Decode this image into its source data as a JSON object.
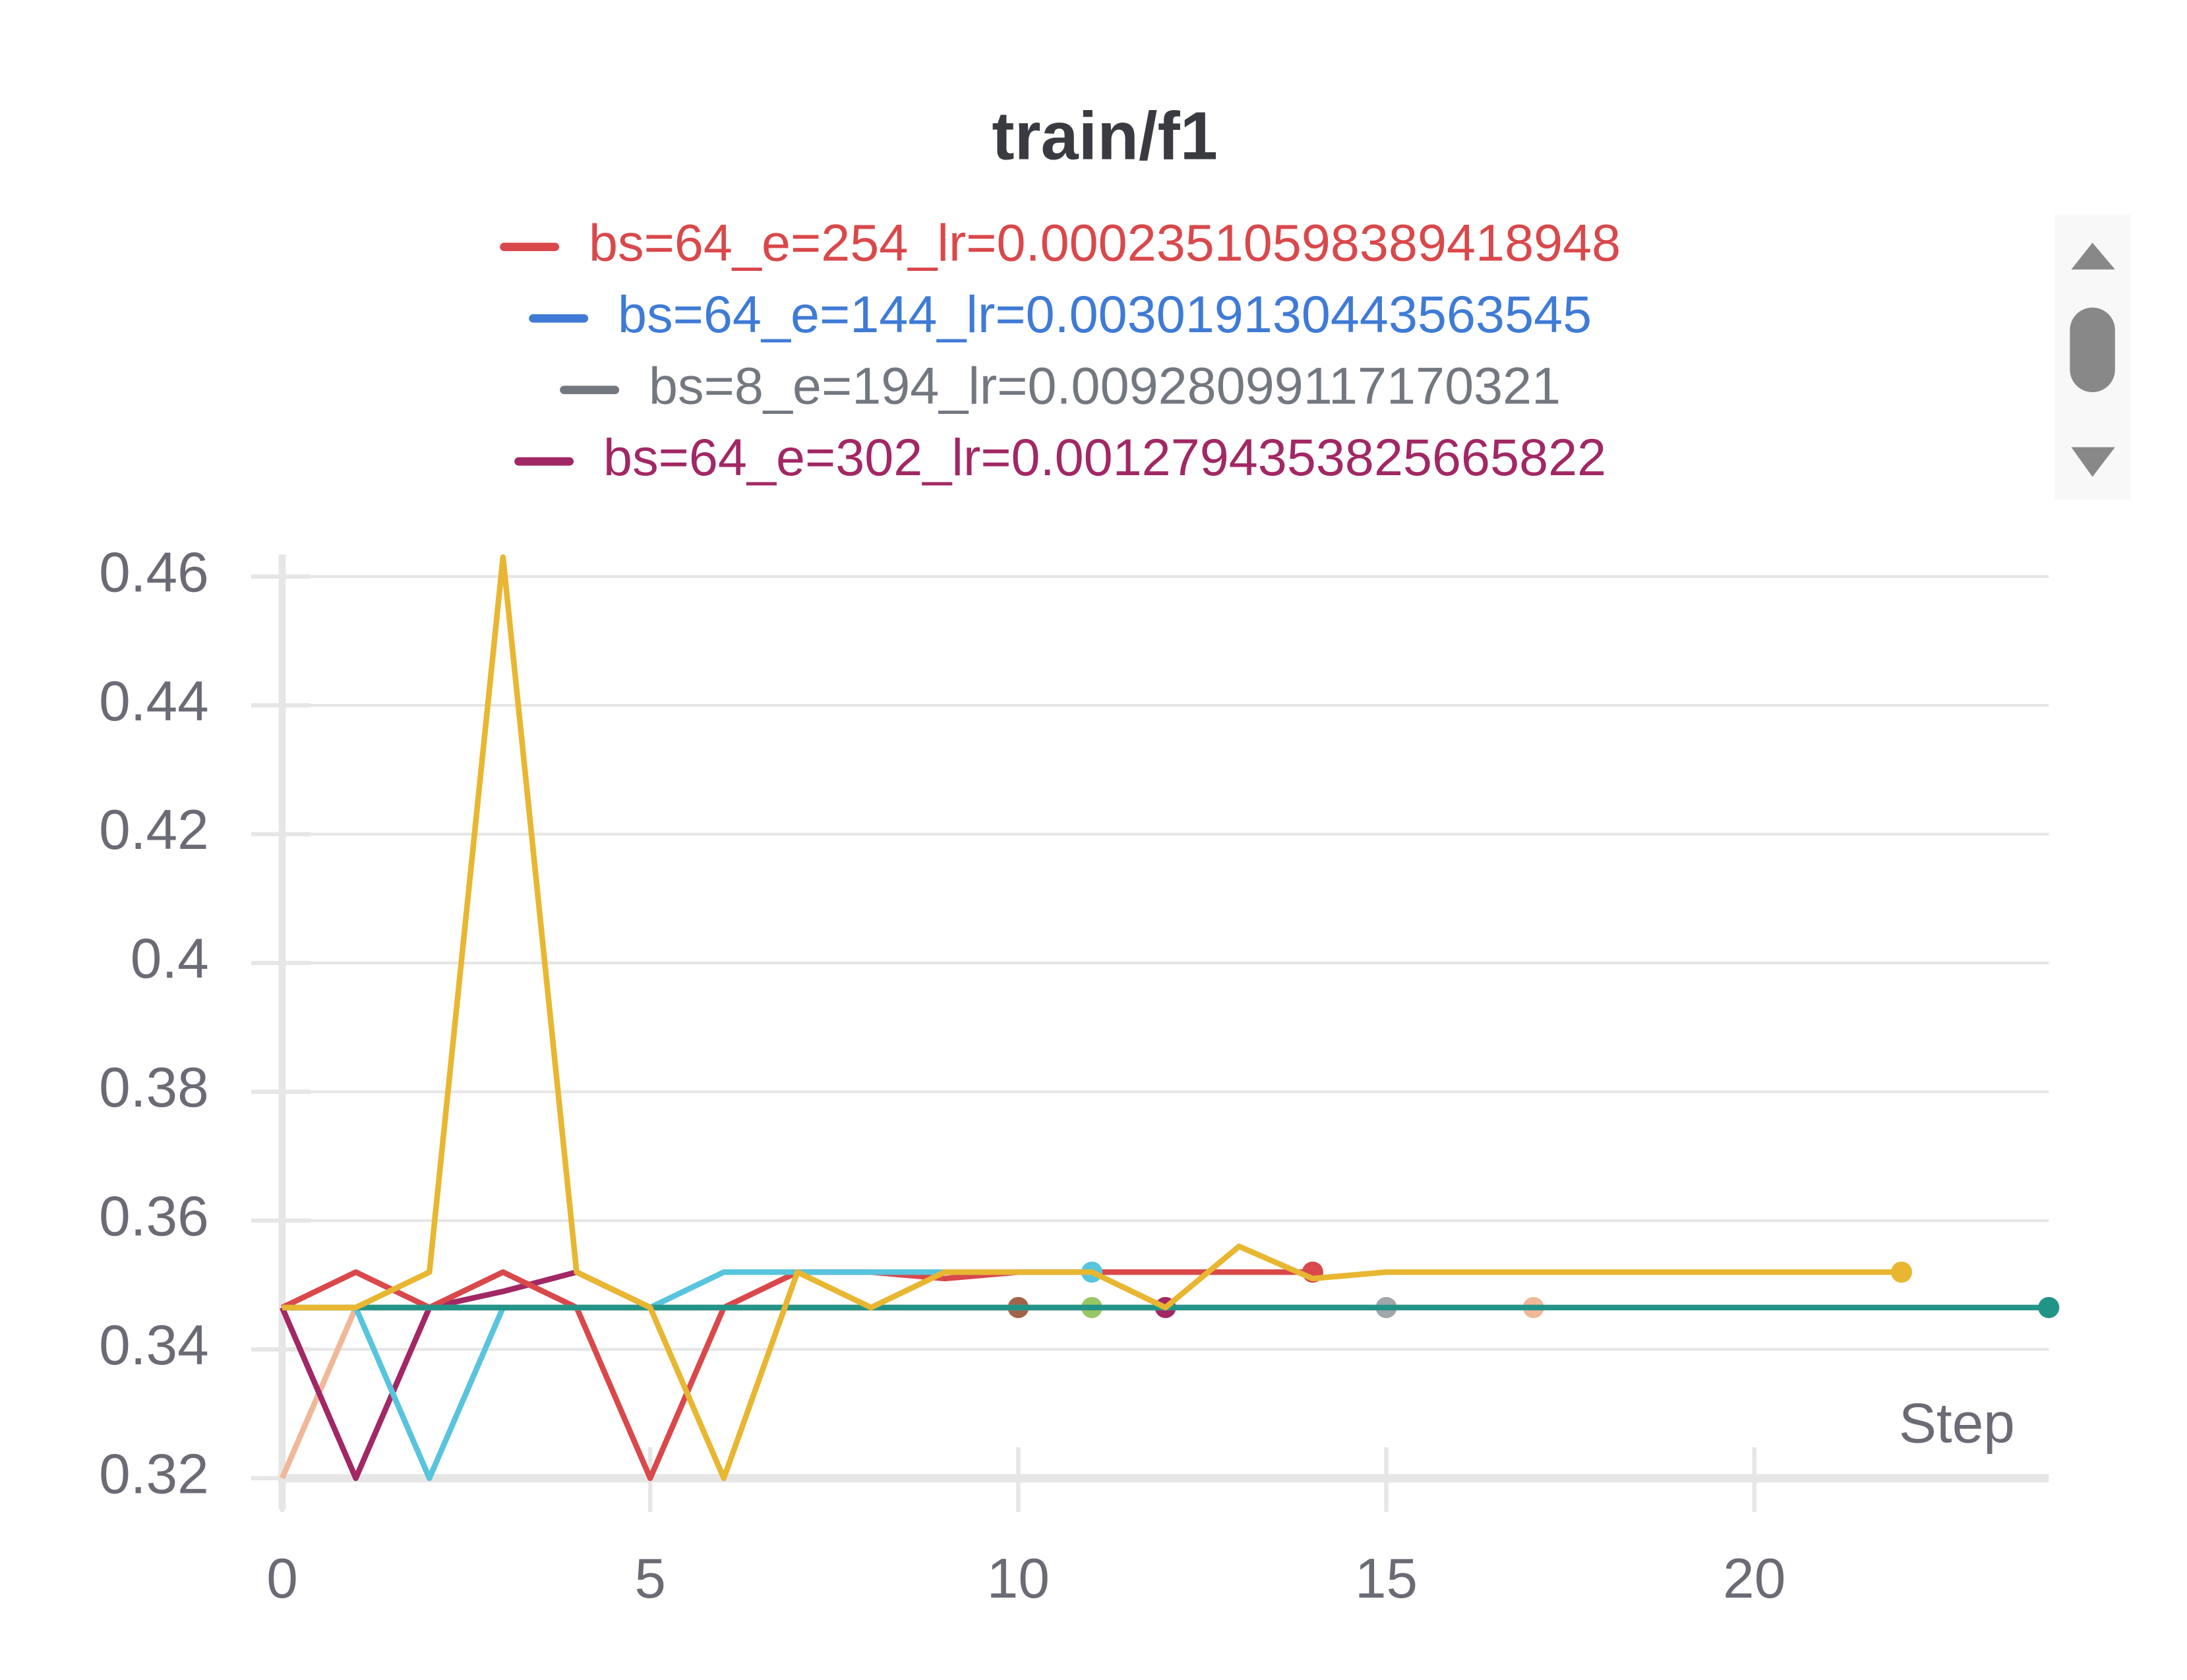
{
  "chart_data": {
    "type": "line",
    "title": "train/f1",
    "legend": [
      {
        "name": "bs=64_e=254_lr=0.00023510598389418948",
        "color": "#d9484b"
      },
      {
        "name": "bs=64_e=144_lr=0.003019130443563545",
        "color": "#3f7bd6"
      },
      {
        "name": "bs=8_e=194_lr=0.00928099117170321",
        "color": "#737880"
      },
      {
        "name": "bs=64_e=302_lr=0.0012794353825665822",
        "color": "#a12864"
      }
    ],
    "x": [
      0,
      1,
      2,
      3,
      4,
      5,
      6,
      7,
      8,
      9,
      10,
      11,
      12,
      13,
      14,
      15,
      16,
      17,
      18,
      19,
      20,
      21,
      22,
      23,
      24
    ],
    "series": [
      {
        "color": "#f0b899",
        "values": [
          0.32,
          0.3465,
          0.3465,
          0.3465,
          0.3465,
          0.3465,
          0.3465,
          0.3465,
          0.3465,
          0.3465,
          0.3465,
          0.3465,
          0.3465,
          0.3465,
          0.3465,
          0.3465,
          0.3465,
          0.3465,
          null,
          null,
          null,
          null,
          null,
          null,
          null
        ]
      },
      {
        "color": "#a12864",
        "values": [
          0.3465,
          0.32,
          0.3465,
          0.349,
          0.352,
          0.3465,
          0.3465,
          0.3465,
          0.3465,
          0.3465,
          0.3465,
          0.3465,
          0.3465,
          null,
          null,
          null,
          null,
          null,
          null,
          null,
          null,
          null,
          null,
          null,
          null
        ]
      },
      {
        "color": "#d9484b",
        "values": [
          0.3465,
          0.352,
          0.3465,
          0.352,
          0.3465,
          0.32,
          0.3465,
          0.352,
          0.352,
          0.351,
          0.352,
          0.352,
          0.352,
          0.352,
          0.352,
          null,
          null,
          null,
          null,
          null,
          null,
          null,
          null,
          null,
          null
        ]
      },
      {
        "color": "#58c4dd",
        "values": [
          0.3465,
          0.3465,
          0.32,
          0.3465,
          0.3465,
          0.3465,
          0.352,
          0.352,
          0.352,
          0.352,
          0.352,
          0.352,
          null,
          null,
          null,
          null,
          null,
          null,
          null,
          null,
          null,
          null,
          null,
          null,
          null
        ]
      },
      {
        "color": "#a0644a",
        "values": [
          0.3465,
          0.3465,
          0.3465,
          0.3465,
          0.3465,
          0.3465,
          0.3465,
          0.3465,
          0.3465,
          0.3465,
          0.3465,
          null,
          null,
          null,
          null,
          null,
          null,
          null,
          null,
          null,
          null,
          null,
          null,
          null,
          null
        ]
      },
      {
        "color": "#98c765",
        "values": [
          0.3465,
          0.3465,
          0.3465,
          0.3465,
          0.3465,
          0.3465,
          0.3465,
          0.3465,
          0.3465,
          0.3465,
          0.3465,
          0.3465,
          null,
          null,
          null,
          null,
          null,
          null,
          null,
          null,
          null,
          null,
          null,
          null,
          null
        ]
      },
      {
        "color": "#a0a7ab",
        "values": [
          0.3465,
          0.3465,
          0.3465,
          0.3465,
          0.3465,
          0.3465,
          0.3465,
          0.3465,
          0.3465,
          0.3465,
          0.3465,
          0.3465,
          0.3465,
          0.3465,
          0.3465,
          0.3465,
          null,
          null,
          null,
          null,
          null,
          null,
          null,
          null,
          null
        ]
      },
      {
        "color": "#229487",
        "values": [
          0.3465,
          0.3465,
          0.3465,
          0.3465,
          0.3465,
          0.3465,
          0.3465,
          0.3465,
          0.3465,
          0.3465,
          0.3465,
          0.3465,
          0.3465,
          0.3465,
          0.3465,
          0.3465,
          0.3465,
          0.3465,
          0.3465,
          0.3465,
          0.3465,
          0.3465,
          0.3465,
          0.3465,
          0.3465
        ]
      },
      {
        "color": "#e8b631",
        "values": [
          0.3465,
          0.3465,
          0.352,
          0.463,
          0.352,
          0.3465,
          0.32,
          0.352,
          0.3465,
          0.352,
          0.352,
          0.352,
          0.3465,
          0.356,
          0.351,
          0.352,
          0.352,
          0.352,
          0.352,
          0.352,
          0.352,
          0.352,
          0.352,
          null,
          null
        ]
      }
    ],
    "xlabel": "Step",
    "xlim": [
      0,
      24
    ],
    "xticks": [
      0,
      5,
      10,
      15,
      20
    ],
    "ylim": [
      0.32,
      0.463
    ],
    "yticks": [
      0.32,
      0.34,
      0.36,
      0.38,
      0.4,
      0.42,
      0.44,
      0.46
    ],
    "grid": true
  }
}
